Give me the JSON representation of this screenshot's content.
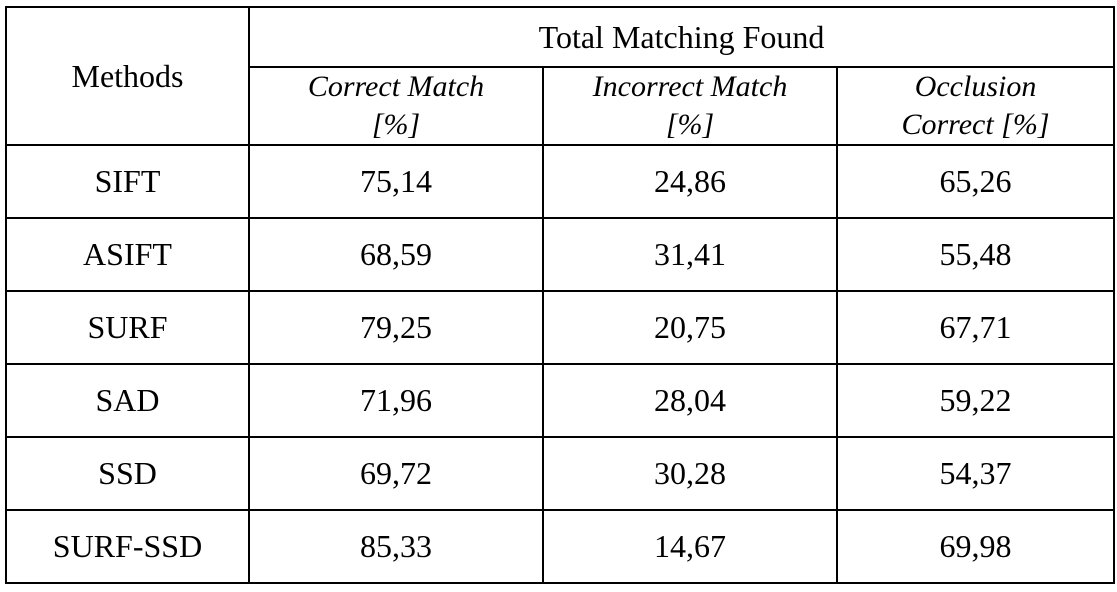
{
  "table": {
    "methods_header": "Methods",
    "group_header": "Total Matching Found",
    "columns": [
      {
        "line1": "Correct Match",
        "line2": "[%]"
      },
      {
        "line1": "Incorrect Match",
        "line2": "[%]"
      },
      {
        "line1": "Occlusion",
        "line2": "Correct [%]"
      }
    ],
    "rows": [
      {
        "method": "SIFT",
        "values": [
          "75,14",
          "24,86",
          "65,26"
        ]
      },
      {
        "method": "ASIFT",
        "values": [
          "68,59",
          "31,41",
          "55,48"
        ]
      },
      {
        "method": "SURF",
        "values": [
          "79,25",
          "20,75",
          "67,71"
        ]
      },
      {
        "method": "SAD",
        "values": [
          "71,96",
          "28,04",
          "59,22"
        ]
      },
      {
        "method": "SSD",
        "values": [
          "69,72",
          "30,28",
          "54,37"
        ]
      },
      {
        "method": "SURF-SSD",
        "values": [
          "85,33",
          "14,67",
          "69,98"
        ]
      }
    ]
  }
}
